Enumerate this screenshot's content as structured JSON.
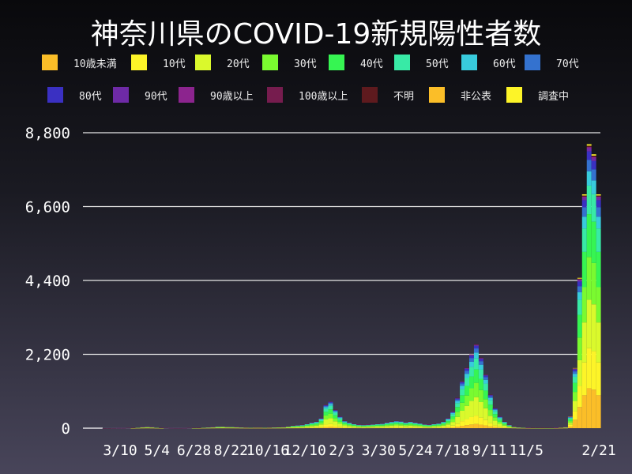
{
  "chart_data": {
    "type": "bar",
    "stacked": true,
    "title": "神奈川県のCOVID-19新規陽性者数",
    "xlabel": "",
    "ylabel": "",
    "ylim": [
      0,
      8800
    ],
    "yticks": [
      0,
      2200,
      4400,
      6600,
      8800
    ],
    "ytick_labels": [
      "0",
      "2,200",
      "4,400",
      "6,600",
      "8,800"
    ],
    "xticks": [
      "2020-03-10",
      "2020-05-04",
      "2020-06-28",
      "2020-08-22",
      "2020-10-16",
      "2020-12-10",
      "2021-02-03",
      "2021-03-30",
      "2021-05-24",
      "2021-07-18",
      "2021-09-11",
      "2021-11-05",
      "2022-02-21"
    ],
    "xtick_labels": [
      "3/10",
      "5/4",
      "6/28",
      "8/22",
      "10/16",
      "12/10",
      "2/3",
      "3/30",
      "5/24",
      "7/18",
      "9/11",
      "11/5",
      "2/21"
    ],
    "grid": "horizontal",
    "legend_placement": "top",
    "series_names": [
      "10歳未満",
      "10代",
      "20代",
      "30代",
      "40代",
      "50代",
      "60代",
      "70代",
      "80代",
      "90代",
      "90歳以上",
      "100歳以上",
      "不明",
      "非公表",
      "調査中"
    ],
    "series_colors": [
      "#fbbe28",
      "#fdf428",
      "#daf92c",
      "#7afa30",
      "#36f552",
      "#38eaa6",
      "#38cbdc",
      "#3472cf",
      "#3a30c2",
      "#6e2aa6",
      "#8c248e",
      "#761c4e",
      "#5e1a1e",
      "#fbbe28",
      "#fdf428"
    ],
    "dates": [
      "2020-01-16",
      "2020-01-23",
      "2020-01-30",
      "2020-02-06",
      "2020-02-13",
      "2020-02-20",
      "2020-02-27",
      "2020-03-05",
      "2020-03-12",
      "2020-03-19",
      "2020-03-26",
      "2020-04-02",
      "2020-04-09",
      "2020-04-16",
      "2020-04-23",
      "2020-04-30",
      "2020-05-07",
      "2020-05-14",
      "2020-05-21",
      "2020-05-28",
      "2020-06-04",
      "2020-06-11",
      "2020-06-18",
      "2020-06-25",
      "2020-07-02",
      "2020-07-09",
      "2020-07-16",
      "2020-07-23",
      "2020-07-30",
      "2020-08-06",
      "2020-08-13",
      "2020-08-20",
      "2020-08-27",
      "2020-09-03",
      "2020-09-10",
      "2020-09-17",
      "2020-09-24",
      "2020-10-01",
      "2020-10-08",
      "2020-10-15",
      "2020-10-22",
      "2020-10-29",
      "2020-11-05",
      "2020-11-12",
      "2020-11-19",
      "2020-11-26",
      "2020-12-03",
      "2020-12-10",
      "2020-12-17",
      "2020-12-24",
      "2020-12-31",
      "2021-01-07",
      "2021-01-14",
      "2021-01-21",
      "2021-01-28",
      "2021-02-04",
      "2021-02-11",
      "2021-02-18",
      "2021-02-25",
      "2021-03-04",
      "2021-03-11",
      "2021-03-18",
      "2021-03-25",
      "2021-04-01",
      "2021-04-08",
      "2021-04-15",
      "2021-04-22",
      "2021-04-29",
      "2021-05-06",
      "2021-05-13",
      "2021-05-20",
      "2021-05-27",
      "2021-06-03",
      "2021-06-10",
      "2021-06-17",
      "2021-06-24",
      "2021-07-01",
      "2021-07-08",
      "2021-07-15",
      "2021-07-22",
      "2021-07-29",
      "2021-08-05",
      "2021-08-12",
      "2021-08-19",
      "2021-08-26",
      "2021-09-02",
      "2021-09-09",
      "2021-09-16",
      "2021-09-23",
      "2021-09-30",
      "2021-10-07",
      "2021-10-14",
      "2021-10-21",
      "2021-10-28",
      "2021-11-04",
      "2021-11-11",
      "2021-11-18",
      "2021-11-25",
      "2021-12-02",
      "2021-12-09",
      "2021-12-16",
      "2021-12-23",
      "2021-12-30",
      "2022-01-06",
      "2022-01-13",
      "2022-01-20",
      "2022-01-27",
      "2022-02-03",
      "2022-02-10",
      "2022-02-17"
    ],
    "total": [
      0,
      0,
      0,
      0,
      1,
      1,
      2,
      3,
      3,
      5,
      10,
      20,
      40,
      50,
      40,
      20,
      10,
      5,
      3,
      2,
      2,
      3,
      5,
      8,
      10,
      20,
      30,
      40,
      55,
      60,
      50,
      45,
      40,
      30,
      25,
      20,
      25,
      25,
      20,
      25,
      30,
      35,
      40,
      60,
      80,
      90,
      100,
      130,
      170,
      200,
      300,
      700,
      800,
      550,
      350,
      220,
      170,
      130,
      110,
      100,
      110,
      120,
      130,
      140,
      170,
      200,
      220,
      210,
      180,
      200,
      170,
      150,
      120,
      110,
      130,
      150,
      200,
      300,
      500,
      900,
      1400,
      1800,
      2200,
      2500,
      2100,
      1600,
      1000,
      600,
      350,
      200,
      100,
      50,
      30,
      20,
      15,
      10,
      8,
      10,
      8,
      8,
      15,
      25,
      40,
      350,
      1800,
      4500,
      7000,
      8500,
      8200,
      7000
    ],
    "age_share": {
      "until_2021-12-31": [
        0.05,
        0.1,
        0.22,
        0.17,
        0.16,
        0.13,
        0.07,
        0.05,
        0.03,
        0.01,
        0.005,
        0.001,
        0.004,
        0,
        0
      ],
      "from_2022-01-01": [
        0.14,
        0.14,
        0.17,
        0.15,
        0.15,
        0.1,
        0.05,
        0.04,
        0.03,
        0.01,
        0.005,
        0.001,
        0.004,
        0,
        0.005
      ]
    }
  }
}
